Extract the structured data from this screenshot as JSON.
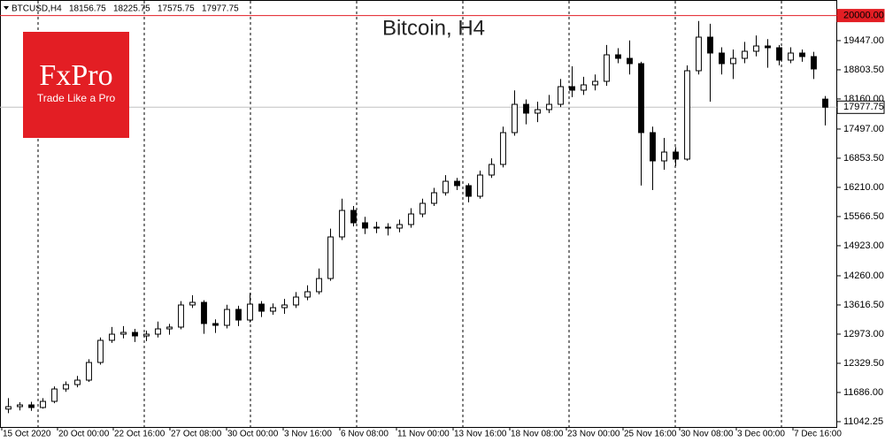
{
  "chart_data": {
    "type": "candlestick",
    "title": "Bitcoin, H4",
    "symbol": "BTCUSD,H4",
    "header_ohlc": [
      18156.75,
      18225.75,
      17575.75,
      17977.75
    ],
    "x_labels": [
      "15 Oct 2020",
      "20 Oct 00:00",
      "22 Oct 16:00",
      "27 Oct 08:00",
      "30 Oct 00:00",
      "3 Nov 16:00",
      "6 Nov 08:00",
      "11 Nov 00:00",
      "13 Nov 16:00",
      "18 Nov 08:00",
      "23 Nov 00:00",
      "25 Nov 16:00",
      "30 Nov 08:00",
      "3 Dec 00:00",
      "7 Dec 16:00"
    ],
    "ylim": [
      10925,
      20343
    ],
    "yticks": [
      {
        "value": 11042.25,
        "label": "11042.25"
      },
      {
        "value": 11686,
        "label": "11686.00"
      },
      {
        "value": 12329.5,
        "label": "12329.50"
      },
      {
        "value": 12973,
        "label": "12973.00"
      },
      {
        "value": 13616.5,
        "label": "13616.50"
      },
      {
        "value": 14260,
        "label": "14260.00"
      },
      {
        "value": 14923,
        "label": "14923.00"
      },
      {
        "value": 15566.5,
        "label": "15566.50"
      },
      {
        "value": 16210,
        "label": "16210.00"
      },
      {
        "value": 16853.5,
        "label": "16853.50"
      },
      {
        "value": 17497,
        "label": "17497.00"
      },
      {
        "value": 18160,
        "label": "18160.00"
      },
      {
        "value": 18803.5,
        "label": "18803.50"
      },
      {
        "value": 19447,
        "label": "19447.00"
      }
    ],
    "levels": [
      {
        "value": 20000,
        "label": "20000.00",
        "color": "#e31e24"
      },
      {
        "value": 17977.75,
        "label": "17977.75",
        "color": "#c0c0c0"
      }
    ],
    "up_color": "#ffffff",
    "down_color": "#000000",
    "open": [
      11320,
      11373,
      11412,
      11354,
      11490,
      11763,
      11860,
      11958,
      12348,
      12836,
      12972,
      13011,
      12933,
      12972,
      13089,
      13128,
      13616,
      13674,
      13206,
      13167,
      13518,
      13284,
      13635,
      13479,
      13557,
      13616,
      13791,
      13908,
      14200,
      15117,
      15702,
      15429,
      15312,
      15332,
      15312,
      15390,
      15624,
      15858,
      16092,
      16345,
      16248,
      16014,
      16482,
      16716,
      17418,
      18042,
      17847,
      17925,
      18042,
      18432,
      18354,
      18471,
      18549,
      19134,
      19056,
      18939,
      17418,
      16794,
      16989,
      16833,
      18783,
      19524,
      19173,
      18939,
      19056,
      19212,
      19329,
      19290,
      19017,
      19173,
      19095,
      18156.75
    ],
    "high": [
      11560,
      11470,
      11480,
      11560,
      11820,
      11930,
      12050,
      12420,
      12900,
      13130,
      13150,
      13090,
      13050,
      13250,
      13200,
      13700,
      13830,
      13720,
      13300,
      13620,
      13600,
      13880,
      13700,
      13650,
      13750,
      13900,
      14050,
      14420,
      15300,
      15960,
      15800,
      15560,
      15450,
      15420,
      15500,
      15750,
      15960,
      16200,
      16480,
      16420,
      16300,
      16580,
      16850,
      17550,
      18350,
      18150,
      18100,
      18250,
      18600,
      18880,
      18650,
      18700,
      19350,
      19280,
      19450,
      18980,
      17550,
      17300,
      17100,
      18900,
      19880,
      19820,
      19300,
      19250,
      19420,
      19560,
      19480,
      19350,
      19300,
      19250,
      19200,
      18225.75
    ],
    "low": [
      11230,
      11290,
      11280,
      11330,
      11450,
      11700,
      11800,
      11920,
      12300,
      12780,
      12880,
      12800,
      12820,
      12900,
      12960,
      13080,
      13550,
      12980,
      13000,
      13100,
      13150,
      13230,
      13350,
      13400,
      13420,
      13550,
      13720,
      13850,
      14150,
      15050,
      15350,
      15180,
      15200,
      15150,
      15220,
      15320,
      15550,
      15800,
      16030,
      16150,
      15880,
      15960,
      16420,
      16650,
      17350,
      17600,
      17650,
      17850,
      17980,
      18200,
      18250,
      18350,
      18450,
      18950,
      18700,
      16250,
      16150,
      16600,
      16680,
      16800,
      18700,
      18100,
      18700,
      18600,
      18950,
      19100,
      18850,
      18900,
      18950,
      18980,
      18600,
      17575.75
    ],
    "close": [
      11373,
      11412,
      11354,
      11490,
      11763,
      11860,
      11958,
      12348,
      12836,
      12972,
      13011,
      12933,
      12972,
      13089,
      13128,
      13616,
      13674,
      13206,
      13167,
      13518,
      13284,
      13635,
      13479,
      13557,
      13616,
      13791,
      13908,
      14200,
      15117,
      15702,
      15429,
      15312,
      15332,
      15312,
      15390,
      15624,
      15858,
      16092,
      16345,
      16248,
      16014,
      16482,
      16716,
      17418,
      18042,
      17847,
      17925,
      18042,
      18432,
      18354,
      18471,
      18549,
      19134,
      19056,
      18939,
      17418,
      16794,
      16989,
      16833,
      18783,
      19524,
      19173,
      18939,
      19056,
      19212,
      19329,
      19290,
      19017,
      19173,
      19095,
      18822,
      17977.75
    ]
  },
  "logo": {
    "brand": "FxPro",
    "tagline": "Trade Like a Pro"
  }
}
